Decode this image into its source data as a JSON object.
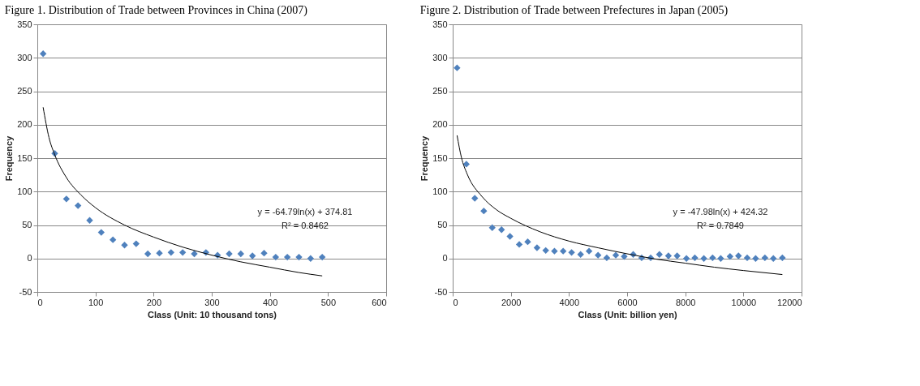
{
  "chart_data": [
    {
      "type": "scatter",
      "title": "Figure 1. Distribution of Trade between Provinces in China (2007)",
      "xlabel": "Class (Unit: 10 thousand tons)",
      "ylabel": "Frequency",
      "xlim": [
        0,
        600
      ],
      "xticks": [
        0,
        100,
        200,
        300,
        400,
        500,
        600
      ],
      "ylim": [
        -50,
        350
      ],
      "yticks": [
        -50,
        0,
        50,
        100,
        150,
        200,
        250,
        300,
        350
      ],
      "grid": "y",
      "marker": "diamond",
      "annotations": [
        "y = -64.79ln(x) + 374.81",
        "R² = 0.8462"
      ],
      "series": [
        {
          "color": "#4f81bd",
          "x": [
            10,
            30,
            50,
            70,
            90,
            110,
            130,
            150,
            170,
            190,
            210,
            230,
            250,
            270,
            290,
            310,
            330,
            350,
            370,
            390,
            410,
            430,
            450,
            470,
            490
          ],
          "values": [
            306,
            157,
            89,
            79,
            57,
            39,
            28,
            20,
            22,
            7,
            8,
            9,
            9,
            7,
            9,
            5,
            7,
            7,
            4,
            8,
            2,
            2,
            2,
            0,
            2
          ]
        },
        {
          "type": "line",
          "marker": "none",
          "color": "#000000",
          "x": [
            10,
            20,
            30,
            50,
            75,
            100,
            150,
            200,
            250,
            300,
            350,
            400,
            450,
            490
          ],
          "values": [
            226,
            181,
            155,
            121,
            95,
            76,
            50,
            32,
            17,
            5,
            -5,
            -13,
            -21,
            -26
          ]
        }
      ]
    },
    {
      "type": "scatter",
      "title": "Figure 2. Distribution of Trade between Prefectures in Japan (2005)",
      "xlabel": "Class (Unit: billion yen)",
      "ylabel": "Frequency",
      "xlim": [
        0,
        12000
      ],
      "xticks": [
        0,
        2000,
        4000,
        6000,
        8000,
        10000,
        12000
      ],
      "ylim": [
        -50,
        350
      ],
      "yticks": [
        -50,
        0,
        50,
        100,
        150,
        200,
        250,
        300,
        350
      ],
      "grid": "y",
      "marker": "diamond",
      "annotations": [
        "y = -47.98ln(x) + 424.32",
        "R² = 0.7849"
      ],
      "series": [
        {
          "color": "#4f81bd",
          "x": [
            150,
            470,
            760,
            1070,
            1360,
            1680,
            1970,
            2290,
            2580,
            2900,
            3200,
            3500,
            3800,
            4090,
            4400,
            4690,
            5000,
            5300,
            5610,
            5900,
            6210,
            6500,
            6810,
            7110,
            7420,
            7720,
            8040,
            8330,
            8640,
            8940,
            9220,
            9540,
            9830,
            10130,
            10420,
            10740,
            11030,
            11340
          ],
          "values": [
            285,
            141,
            90,
            71,
            46,
            43,
            33,
            21,
            25,
            16,
            12,
            11,
            11,
            9,
            6,
            11,
            5,
            1,
            5,
            3,
            6,
            1,
            1,
            6,
            4,
            4,
            0,
            1,
            0,
            1,
            0,
            3,
            4,
            1,
            0,
            1,
            0,
            1
          ]
        },
        {
          "type": "line",
          "marker": "none",
          "color": "#000000",
          "x": [
            150,
            300,
            500,
            1000,
            1500,
            2000,
            3000,
            4000,
            5000,
            6000,
            7000,
            8000,
            9000,
            10000,
            11340
          ],
          "values": [
            184,
            151,
            126,
            93,
            73,
            60,
            40,
            26,
            16,
            7,
            -1,
            -7,
            -13,
            -18,
            -24
          ]
        }
      ]
    }
  ]
}
